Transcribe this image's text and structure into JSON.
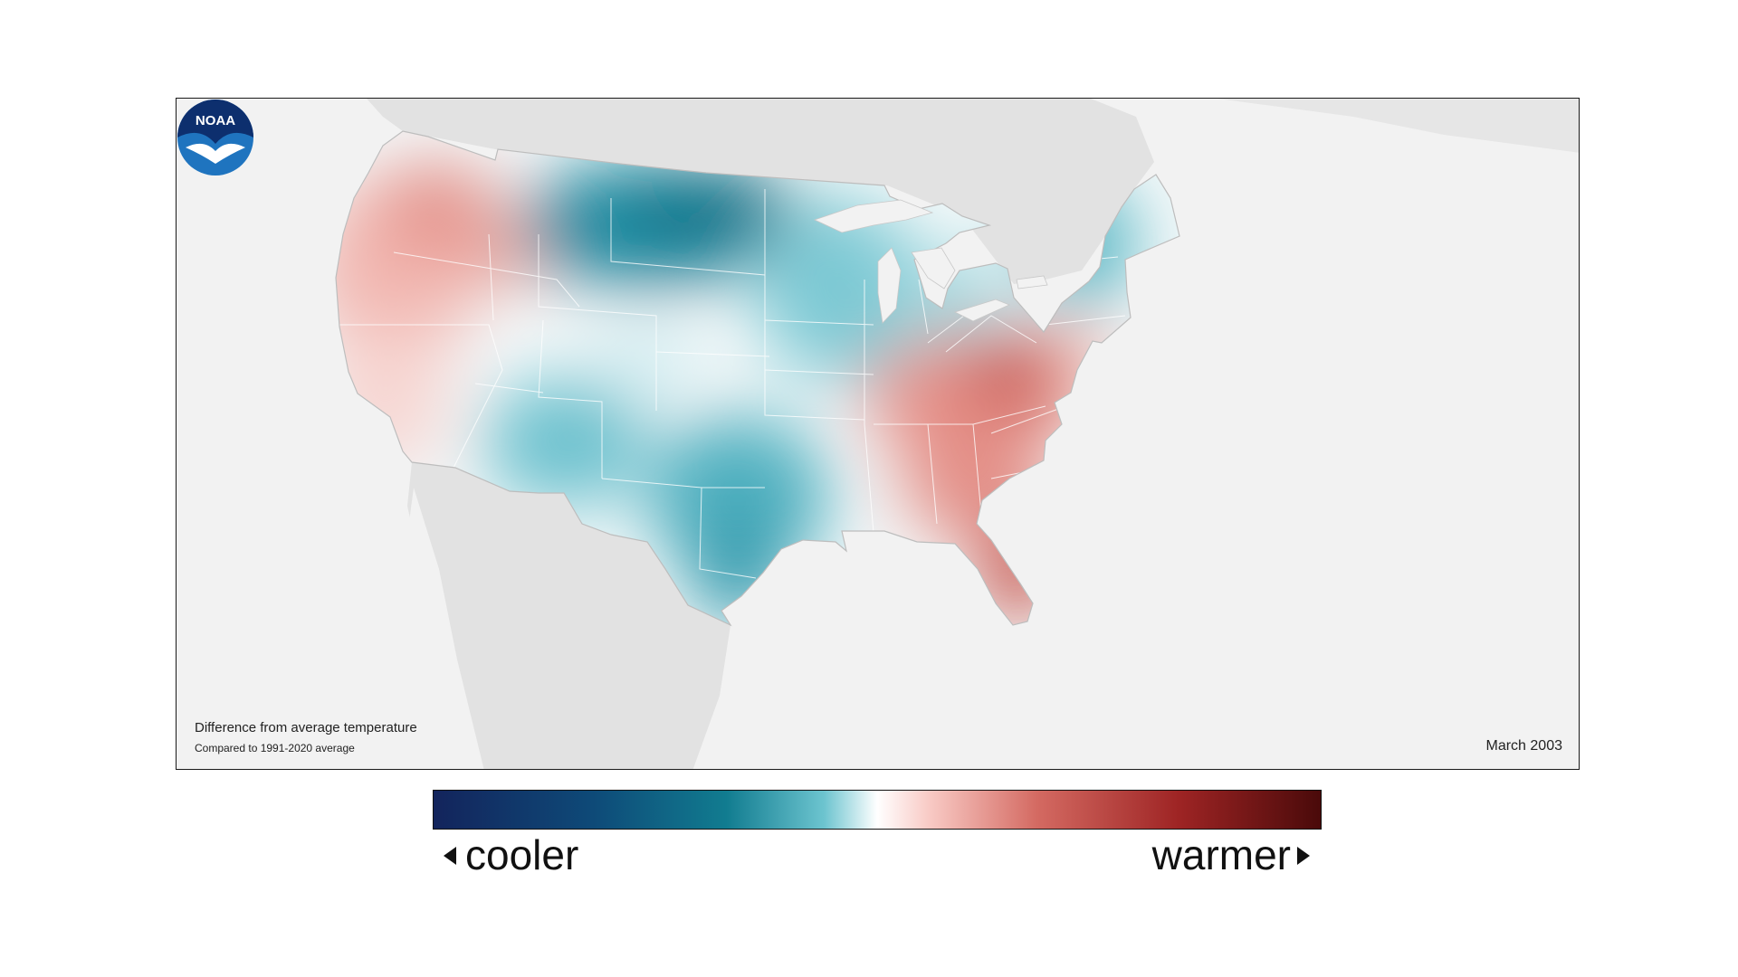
{
  "map": {
    "caption_title": "Difference from average temperature",
    "caption_subtitle": "Compared to 1991-2020 average",
    "date": "March 2003",
    "logo_text": "NOAA"
  },
  "legend": {
    "cooler_label": "cooler",
    "warmer_label": "warmer"
  },
  "colors": {
    "cool_dark": "#0e6f86",
    "cool_mid": "#3aa7b8",
    "cool_light": "#a9dde3",
    "neutral": "#ffffff",
    "warm_light": "#f6c7c1",
    "warm_mid": "#de7c72",
    "warm_dark": "#b4302c",
    "land_background": "#e2e2e2",
    "ocean": "#f2f2f2"
  }
}
